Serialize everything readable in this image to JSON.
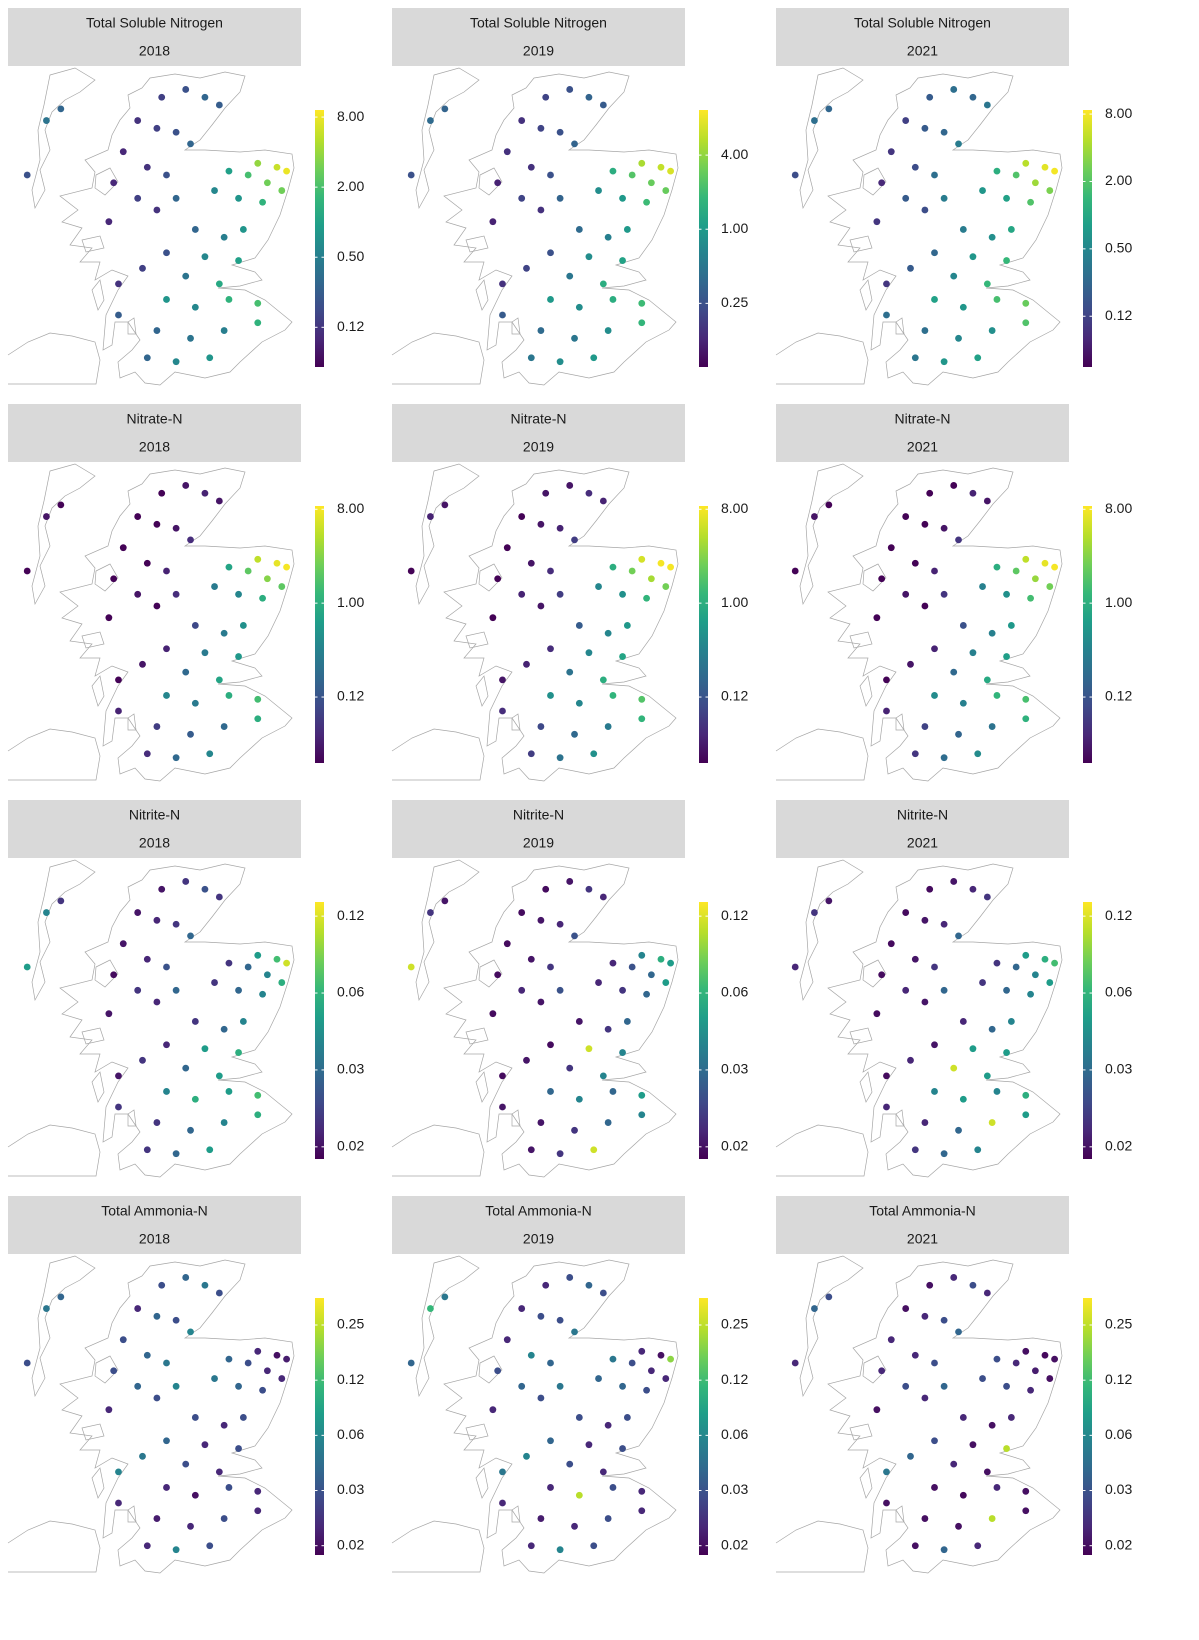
{
  "sites": {
    "lon": [
      -4.5,
      -4.0,
      -3.6,
      -3.3,
      -5.0,
      -4.6,
      -4.2,
      -3.9,
      -5.3,
      -4.8,
      -4.4,
      -5.5,
      -5.0,
      -4.6,
      -5.6,
      -4.2,
      -6.9,
      -6.6,
      -7.3,
      -2.5,
      -2.1,
      -1.9,
      -2.3,
      -2.7,
      -3.1,
      -2.0,
      -2.4,
      -2.9,
      -3.4,
      -3.8,
      -3.2,
      -2.8,
      -4.4,
      -3.6,
      -2.9,
      -4.9,
      -5.4,
      -4.0,
      -3.3,
      -4.4,
      -3.8,
      -3.1,
      -2.5,
      -4.6,
      -3.9,
      -3.2,
      -2.5,
      -4.8,
      -4.2,
      -3.5,
      -5.4
    ],
    "lat": [
      58.4,
      58.5,
      58.4,
      58.3,
      58.1,
      58.0,
      57.95,
      57.8,
      57.7,
      57.5,
      57.4,
      57.3,
      57.1,
      56.95,
      56.8,
      57.1,
      58.1,
      58.25,
      57.4,
      57.55,
      57.5,
      57.45,
      57.3,
      57.4,
      57.45,
      57.2,
      57.05,
      57.1,
      57.2,
      56.7,
      56.6,
      56.7,
      56.4,
      56.35,
      56.3,
      56.2,
      56.0,
      56.1,
      56.0,
      55.8,
      55.7,
      55.8,
      55.75,
      55.4,
      55.3,
      55.4,
      55.5,
      55.05,
      55.0,
      55.05,
      55.6
    ]
  },
  "chart_data": [
    {
      "type": "map",
      "title": "Total Soluble Nitrogen",
      "subtitle": "2018",
      "log_scale": true,
      "colormap": "viridis",
      "values": [
        0.15,
        0.2,
        0.3,
        0.25,
        0.12,
        0.15,
        0.2,
        0.3,
        0.1,
        0.12,
        0.2,
        0.1,
        0.15,
        0.12,
        0.1,
        0.3,
        0.4,
        0.3,
        0.2,
        4,
        6,
        8,
        3,
        2,
        1,
        3,
        1.5,
        0.8,
        0.6,
        0.3,
        0.5,
        0.8,
        0.2,
        0.6,
        1,
        0.15,
        0.12,
        0.4,
        1.2,
        0.8,
        0.6,
        1.5,
        2,
        0.3,
        0.4,
        0.5,
        1.5,
        0.3,
        0.6,
        0.8,
        0.25
      ],
      "colorbar": {
        "lim": [
          0.057,
          9.2
        ],
        "ticks": [
          {
            "value": 8,
            "label": "8.00"
          },
          {
            "value": 2,
            "label": "2.00"
          },
          {
            "value": 0.5,
            "label": "0.50"
          },
          {
            "value": 0.125,
            "label": "0.12"
          }
        ]
      }
    },
    {
      "type": "map",
      "title": "Total Soluble Nitrogen",
      "subtitle": "2019",
      "log_scale": true,
      "colormap": "viridis",
      "values": [
        0.2,
        0.25,
        0.35,
        0.3,
        0.15,
        0.2,
        0.25,
        0.35,
        0.15,
        0.15,
        0.25,
        0.12,
        0.2,
        0.15,
        0.12,
        0.35,
        0.4,
        0.35,
        0.25,
        5,
        6,
        7,
        3,
        2.5,
        1.5,
        3,
        2,
        1,
        0.8,
        0.4,
        0.6,
        1,
        0.25,
        0.8,
        1.2,
        0.2,
        0.15,
        0.5,
        1.5,
        1,
        0.8,
        1.5,
        2,
        0.4,
        0.5,
        0.8,
        1.8,
        0.5,
        0.8,
        1,
        0.3
      ],
      "colorbar": {
        "lim": [
          0.076,
          9.3
        ],
        "ticks": [
          {
            "value": 4,
            "label": "4.00"
          },
          {
            "value": 1,
            "label": "1.00"
          },
          {
            "value": 0.25,
            "label": "0.25"
          }
        ]
      }
    },
    {
      "type": "map",
      "title": "Total Soluble Nitrogen",
      "subtitle": "2021",
      "log_scale": true,
      "colormap": "viridis",
      "values": [
        0.2,
        0.3,
        0.25,
        0.35,
        0.12,
        0.2,
        0.25,
        0.4,
        0.1,
        0.15,
        0.3,
        0.08,
        0.2,
        0.15,
        0.1,
        0.4,
        0.3,
        0.25,
        0.15,
        5,
        7,
        8,
        4,
        2,
        1.2,
        3,
        2,
        0.9,
        0.7,
        0.4,
        0.6,
        1,
        0.25,
        0.7,
        1.5,
        0.2,
        0.1,
        0.5,
        1.5,
        0.9,
        0.7,
        1.8,
        2.5,
        0.3,
        0.5,
        0.6,
        2,
        0.35,
        0.7,
        0.9,
        0.3
      ],
      "colorbar": {
        "lim": [
          0.044,
          8.7
        ],
        "ticks": [
          {
            "value": 8,
            "label": "8.00"
          },
          {
            "value": 2,
            "label": "2.00"
          },
          {
            "value": 0.5,
            "label": "0.50"
          },
          {
            "value": 0.125,
            "label": "0.12"
          }
        ]
      }
    },
    {
      "type": "map",
      "title": "Nitrate-N",
      "subtitle": "2018",
      "log_scale": true,
      "colormap": "viridis",
      "values": [
        0.03,
        0.04,
        0.05,
        0.04,
        0.03,
        0.03,
        0.04,
        0.06,
        0.03,
        0.03,
        0.05,
        0.03,
        0.04,
        0.03,
        0.03,
        0.06,
        0.04,
        0.03,
        0.03,
        5,
        7,
        8,
        3,
        2,
        0.8,
        2,
        1,
        0.4,
        0.3,
        0.1,
        0.3,
        0.5,
        0.05,
        0.3,
        0.6,
        0.04,
        0.03,
        0.2,
        0.8,
        0.4,
        0.3,
        1,
        1.5,
        0.08,
        0.15,
        0.2,
        1,
        0.06,
        0.2,
        0.4,
        0.05
      ],
      "colorbar": {
        "lim": [
          0.029,
          8.6
        ],
        "ticks": [
          {
            "value": 8,
            "label": "8.00"
          },
          {
            "value": 1,
            "label": "1.00"
          },
          {
            "value": 0.125,
            "label": "0.12"
          }
        ]
      }
    },
    {
      "type": "map",
      "title": "Nitrate-N",
      "subtitle": "2019",
      "log_scale": true,
      "colormap": "viridis",
      "values": [
        0.04,
        0.04,
        0.06,
        0.05,
        0.03,
        0.04,
        0.05,
        0.08,
        0.03,
        0.04,
        0.06,
        0.03,
        0.05,
        0.04,
        0.03,
        0.08,
        0.05,
        0.04,
        0.03,
        6,
        8,
        8,
        4,
        2.5,
        1,
        2.5,
        1.2,
        0.5,
        0.4,
        0.15,
        0.4,
        0.6,
        0.06,
        0.4,
        0.8,
        0.05,
        0.04,
        0.25,
        1,
        0.5,
        0.4,
        1.2,
        1.8,
        0.1,
        0.2,
        0.3,
        1.2,
        0.08,
        0.25,
        0.5,
        0.06
      ],
      "colorbar": {
        "lim": [
          0.029,
          8.6
        ],
        "ticks": [
          {
            "value": 8,
            "label": "8.00"
          },
          {
            "value": 1,
            "label": "1.00"
          },
          {
            "value": 0.125,
            "label": "0.12"
          }
        ]
      }
    },
    {
      "type": "map",
      "title": "Nitrate-N",
      "subtitle": "2021",
      "log_scale": true,
      "colormap": "viridis",
      "values": [
        0.03,
        0.03,
        0.05,
        0.04,
        0.03,
        0.03,
        0.04,
        0.07,
        0.03,
        0.03,
        0.05,
        0.03,
        0.04,
        0.03,
        0.03,
        0.07,
        0.04,
        0.03,
        0.03,
        5,
        7,
        8,
        3.5,
        2,
        1,
        2.5,
        1.5,
        0.5,
        0.35,
        0.12,
        0.35,
        0.6,
        0.05,
        0.35,
        0.7,
        0.04,
        0.03,
        0.2,
        0.9,
        0.45,
        0.35,
        1.2,
        1.6,
        0.09,
        0.18,
        0.25,
        1.1,
        0.07,
        0.22,
        0.45,
        0.05
      ],
      "colorbar": {
        "lim": [
          0.029,
          8.6
        ],
        "ticks": [
          {
            "value": 8,
            "label": "8.00"
          },
          {
            "value": 1,
            "label": "1.00"
          },
          {
            "value": 0.125,
            "label": "0.12"
          }
        ]
      }
    },
    {
      "type": "map",
      "title": "Nitrite-N",
      "subtitle": "2018",
      "log_scale": true,
      "colormap": "viridis",
      "values": [
        0.016,
        0.02,
        0.025,
        0.02,
        0.016,
        0.018,
        0.02,
        0.03,
        0.016,
        0.018,
        0.025,
        0.015,
        0.02,
        0.018,
        0.016,
        0.03,
        0.04,
        0.02,
        0.05,
        0.05,
        0.07,
        0.12,
        0.04,
        0.03,
        0.02,
        0.06,
        0.04,
        0.03,
        0.02,
        0.02,
        0.03,
        0.04,
        0.018,
        0.05,
        0.06,
        0.02,
        0.016,
        0.03,
        0.05,
        0.04,
        0.06,
        0.05,
        0.07,
        0.02,
        0.03,
        0.04,
        0.06,
        0.02,
        0.03,
        0.05,
        0.02
      ],
      "colorbar": {
        "lim": [
          0.014,
          0.142
        ],
        "ticks": [
          {
            "value": 0.125,
            "label": "0.12"
          },
          {
            "value": 0.0625,
            "label": "0.06"
          },
          {
            "value": 0.03125,
            "label": "0.03"
          },
          {
            "value": 0.015625,
            "label": "0.02"
          }
        ]
      }
    },
    {
      "type": "map",
      "title": "Nitrite-N",
      "subtitle": "2019",
      "log_scale": true,
      "colormap": "viridis",
      "values": [
        0.015,
        0.016,
        0.02,
        0.018,
        0.015,
        0.016,
        0.018,
        0.025,
        0.015,
        0.016,
        0.02,
        0.015,
        0.018,
        0.016,
        0.015,
        0.025,
        0.02,
        0.016,
        0.12,
        0.04,
        0.06,
        0.05,
        0.03,
        0.025,
        0.018,
        0.05,
        0.03,
        0.02,
        0.018,
        0.016,
        0.02,
        0.03,
        0.015,
        0.12,
        0.04,
        0.016,
        0.015,
        0.02,
        0.04,
        0.03,
        0.04,
        0.03,
        0.05,
        0.016,
        0.02,
        0.03,
        0.04,
        0.016,
        0.02,
        0.12,
        0.016
      ],
      "colorbar": {
        "lim": [
          0.014,
          0.142
        ],
        "ticks": [
          {
            "value": 0.125,
            "label": "0.12"
          },
          {
            "value": 0.0625,
            "label": "0.06"
          },
          {
            "value": 0.03125,
            "label": "0.03"
          },
          {
            "value": 0.015625,
            "label": "0.02"
          }
        ]
      }
    },
    {
      "type": "map",
      "title": "Nitrite-N",
      "subtitle": "2021",
      "log_scale": true,
      "colormap": "viridis",
      "values": [
        0.015,
        0.016,
        0.018,
        0.02,
        0.015,
        0.016,
        0.018,
        0.03,
        0.015,
        0.016,
        0.02,
        0.015,
        0.018,
        0.016,
        0.015,
        0.03,
        0.02,
        0.016,
        0.018,
        0.05,
        0.06,
        0.07,
        0.04,
        0.03,
        0.02,
        0.05,
        0.04,
        0.03,
        0.02,
        0.018,
        0.03,
        0.04,
        0.016,
        0.05,
        0.05,
        0.018,
        0.015,
        0.12,
        0.05,
        0.04,
        0.05,
        0.04,
        0.06,
        0.018,
        0.03,
        0.12,
        0.05,
        0.02,
        0.03,
        0.04,
        0.018
      ],
      "colorbar": {
        "lim": [
          0.014,
          0.142
        ],
        "ticks": [
          {
            "value": 0.125,
            "label": "0.12"
          },
          {
            "value": 0.0625,
            "label": "0.06"
          },
          {
            "value": 0.03125,
            "label": "0.03"
          },
          {
            "value": 0.015625,
            "label": "0.02"
          }
        ]
      }
    },
    {
      "type": "map",
      "title": "Total Ammonia-N",
      "subtitle": "2018",
      "log_scale": true,
      "colormap": "viridis",
      "values": [
        0.03,
        0.04,
        0.05,
        0.03,
        0.02,
        0.04,
        0.03,
        0.06,
        0.03,
        0.04,
        0.05,
        0.03,
        0.04,
        0.03,
        0.02,
        0.06,
        0.05,
        0.04,
        0.03,
        0.02,
        0.016,
        0.018,
        0.02,
        0.03,
        0.04,
        0.02,
        0.03,
        0.04,
        0.05,
        0.03,
        0.02,
        0.03,
        0.04,
        0.02,
        0.03,
        0.05,
        0.06,
        0.03,
        0.02,
        0.02,
        0.016,
        0.03,
        0.02,
        0.018,
        0.02,
        0.03,
        0.02,
        0.02,
        0.06,
        0.03,
        0.02
      ],
      "colorbar": {
        "lim": [
          0.0139,
          0.351
        ],
        "ticks": [
          {
            "value": 0.25,
            "label": "0.25"
          },
          {
            "value": 0.125,
            "label": "0.12"
          },
          {
            "value": 0.0625,
            "label": "0.06"
          },
          {
            "value": 0.03125,
            "label": "0.03"
          },
          {
            "value": 0.015625,
            "label": "0.02"
          }
        ]
      }
    },
    {
      "type": "map",
      "title": "Total Ammonia-N",
      "subtitle": "2019",
      "log_scale": true,
      "colormap": "viridis",
      "values": [
        0.02,
        0.03,
        0.04,
        0.03,
        0.02,
        0.03,
        0.03,
        0.05,
        0.02,
        0.06,
        0.04,
        0.03,
        0.04,
        0.03,
        0.02,
        0.05,
        0.12,
        0.05,
        0.04,
        0.02,
        0.016,
        0.2,
        0.02,
        0.03,
        0.05,
        0.02,
        0.03,
        0.04,
        0.04,
        0.03,
        0.02,
        0.03,
        0.04,
        0.02,
        0.03,
        0.06,
        0.05,
        0.03,
        0.02,
        0.02,
        0.25,
        0.03,
        0.02,
        0.018,
        0.02,
        0.03,
        0.02,
        0.02,
        0.06,
        0.03,
        0.02
      ],
      "colorbar": {
        "lim": [
          0.0139,
          0.351
        ],
        "ticks": [
          {
            "value": 0.25,
            "label": "0.25"
          },
          {
            "value": 0.125,
            "label": "0.12"
          },
          {
            "value": 0.0625,
            "label": "0.06"
          },
          {
            "value": 0.03125,
            "label": "0.03"
          },
          {
            "value": 0.015625,
            "label": "0.02"
          }
        ]
      }
    },
    {
      "type": "map",
      "title": "Total Ammonia-N",
      "subtitle": "2021",
      "log_scale": true,
      "colormap": "viridis",
      "values": [
        0.016,
        0.02,
        0.03,
        0.02,
        0.016,
        0.02,
        0.03,
        0.04,
        0.02,
        0.02,
        0.03,
        0.02,
        0.03,
        0.02,
        0.016,
        0.04,
        0.04,
        0.03,
        0.02,
        0.016,
        0.015,
        0.016,
        0.018,
        0.02,
        0.03,
        0.016,
        0.02,
        0.03,
        0.03,
        0.02,
        0.016,
        0.02,
        0.03,
        0.016,
        0.25,
        0.04,
        0.05,
        0.02,
        0.016,
        0.016,
        0.015,
        0.02,
        0.016,
        0.016,
        0.016,
        0.25,
        0.016,
        0.016,
        0.04,
        0.02,
        0.016
      ],
      "colorbar": {
        "lim": [
          0.0139,
          0.351
        ],
        "ticks": [
          {
            "value": 0.25,
            "label": "0.25"
          },
          {
            "value": 0.125,
            "label": "0.12"
          },
          {
            "value": 0.0625,
            "label": "0.06"
          },
          {
            "value": 0.03125,
            "label": "0.03"
          },
          {
            "value": 0.015625,
            "label": "0.02"
          }
        ]
      }
    }
  ]
}
